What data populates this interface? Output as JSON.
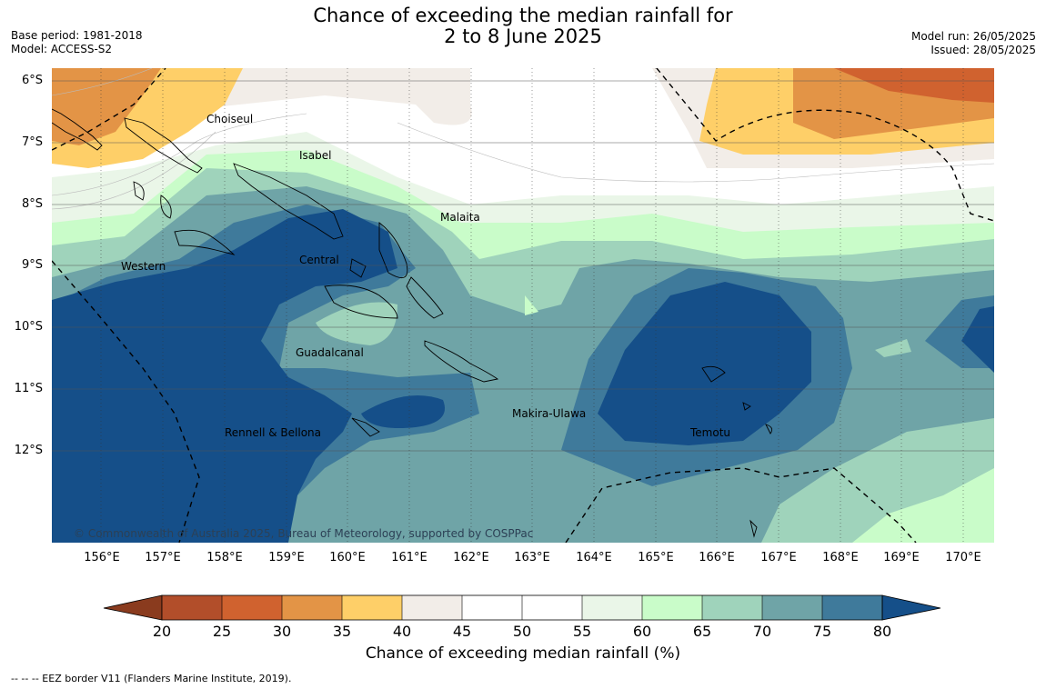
{
  "title_line1": "Chance of exceeding the median rainfall for",
  "title_line2": "2 to 8 June 2025",
  "base_period": "Base period: 1981-2018",
  "model": "Model: ACCESS-S2",
  "model_run": "Model run: 26/05/2025",
  "issued": "Issued: 28/05/2025",
  "lat_labels": [
    "6°S",
    "7°S",
    "8°S",
    "9°S",
    "10°S",
    "11°S",
    "12°S"
  ],
  "lon_labels": [
    "156°E",
    "157°E",
    "158°E",
    "159°E",
    "160°E",
    "161°E",
    "162°E",
    "163°E",
    "164°E",
    "165°E",
    "166°E",
    "167°E",
    "168°E",
    "169°E",
    "170°E"
  ],
  "regions": {
    "choiseul": "Choiseul",
    "isabel": "Isabel",
    "malaita": "Malaita",
    "central": "Central",
    "western": "Western",
    "guadalcanal": "Guadalcanal",
    "makira_ulawa": "Makira-Ulawa",
    "temotu": "Temotu",
    "rennell_bellona": "Rennell & Bellona"
  },
  "copyright": "© Commonwealth of Australia 2025, Bureau of Meteorology, supported by COSPPac",
  "colorbar": {
    "ticks": [
      "20",
      "25",
      "30",
      "35",
      "40",
      "45",
      "50",
      "55",
      "60",
      "65",
      "70",
      "75",
      "80"
    ],
    "colors": {
      "below_20": "#8a3b1e",
      "20_25": "#b24e2a",
      "25_30": "#d0622f",
      "30_35": "#e39446",
      "35_40": "#fecf68",
      "40_45": "#f2ede8",
      "45_50": "#ffffff",
      "50_55": "#ffffff",
      "55_60": "#eaf6e8",
      "60_65": "#c9fcc9",
      "65_70": "#9fd3bb",
      "70_75": "#6fa4a7",
      "75_80": "#3f7a9b",
      "above_80": "#154f89"
    },
    "title": "Chance of exceeding median rainfall (%)"
  },
  "footnote": "--  --  -- EEZ border V11 (Flanders Marine Institute, 2019)."
}
